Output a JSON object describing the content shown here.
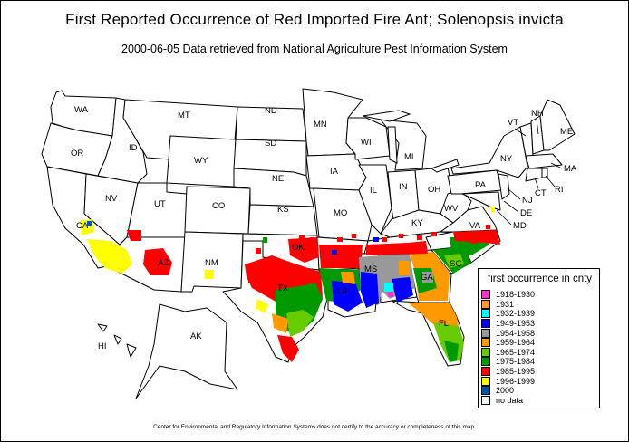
{
  "title": "First Reported Occurrence of Red Imported Fire Ant; Solenopsis invicta",
  "subtitle": "2000-06-05 Data retrieved from National Agriculture Pest Information System",
  "footer": "Center for Environmental and Regulatory Information Systems does not certify to the accuracy or completeness of this map.",
  "legend": {
    "title": "first occurrence in cnty",
    "items": [
      {
        "label": "1918-1930",
        "color": "#ff33cc"
      },
      {
        "label": "1931",
        "color": "#ff9933"
      },
      {
        "label": "1932-1939",
        "color": "#00ffff"
      },
      {
        "label": "1949-1953",
        "color": "#0000ff"
      },
      {
        "label": "1954-1958",
        "color": "#999999"
      },
      {
        "label": "1959-1964",
        "color": "#ff9900"
      },
      {
        "label": "1965-1974",
        "color": "#66cc00"
      },
      {
        "label": "1975-1984",
        "color": "#009900"
      },
      {
        "label": "1985-1995",
        "color": "#ff0000"
      },
      {
        "label": "1996-1999",
        "color": "#ffff00"
      },
      {
        "label": "2000",
        "color": "#0055aa"
      },
      {
        "label": "no data",
        "color": "#ffffff"
      }
    ]
  },
  "states": {
    "WA": "WA",
    "OR": "OR",
    "ID": "ID",
    "MT": "MT",
    "ND": "ND",
    "SD": "SD",
    "WY": "WY",
    "NE": "NE",
    "MN": "MN",
    "WI": "WI",
    "MI": "MI",
    "IA": "IA",
    "IL": "IL",
    "IN": "IN",
    "OH": "OH",
    "PA": "PA",
    "NY": "NY",
    "VT": "VT",
    "NH": "NH",
    "ME": "ME",
    "MA": "MA",
    "RI": "RI",
    "CT": "CT",
    "NJ": "NJ",
    "DE": "DE",
    "MD": "MD",
    "VA": "VA",
    "WV": "WV",
    "KY": "KY",
    "NV": "NV",
    "UT": "UT",
    "CO": "CO",
    "KS": "KS",
    "MO": "MO",
    "CA": "CA",
    "AZ": "AZ",
    "NM": "NM",
    "OK": "OK",
    "TX": "TX",
    "MS": "MS",
    "LA": "LA",
    "GA": "GA",
    "SC": "SC",
    "FL": "FL",
    "AK": "AK",
    "HI": "HI"
  }
}
